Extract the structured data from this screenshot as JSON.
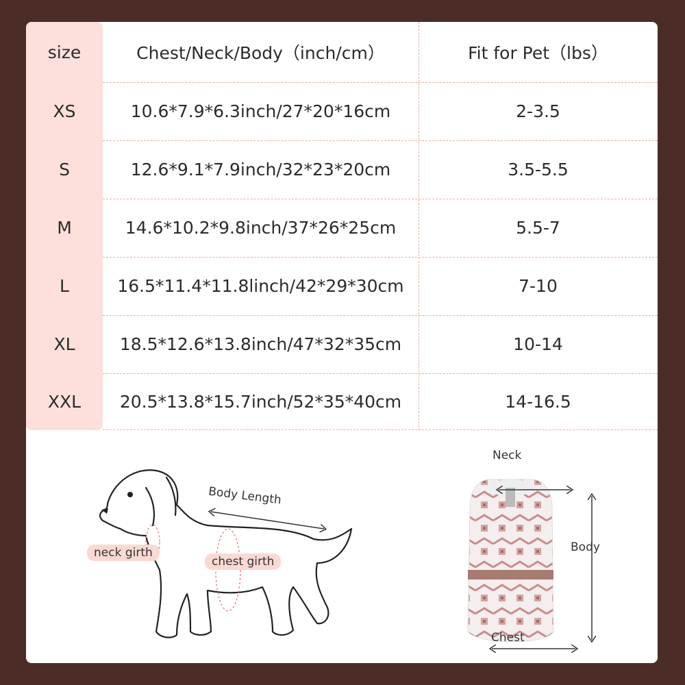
{
  "table": {
    "headers": [
      "size",
      "Chest/Neck/Body（inch/cm）",
      "Fit for Pet（lbs）"
    ],
    "rows": [
      [
        "XS",
        "10.6*7.9*6.3inch/27*20*16cm",
        "2-3.5"
      ],
      [
        "S",
        "12.6*9.1*7.9inch/32*23*20cm",
        "3.5-5.5"
      ],
      [
        "M",
        "14.6*10.2*9.8inch/37*26*25cm",
        "5.5-7"
      ],
      [
        "L",
        "16.5*11.4*11.8linch/42*29*30cm",
        "7-10"
      ],
      [
        "XL",
        "18.5*12.6*13.8inch/47*32*35cm",
        "10-14"
      ],
      [
        "XXL",
        "20.5*13.8*15.7inch/52*35*40cm",
        "14-16.5"
      ]
    ]
  },
  "dog_diagram": {
    "body_length": "Body Length",
    "neck_girth": "neck girth",
    "chest_girth": "chest girth"
  },
  "sweater_diagram": {
    "neck": "Neck",
    "body": "Body",
    "chest": "Chest"
  },
  "colors": {
    "background": "#4b2c26",
    "accent_pink": "#fde0db",
    "dash": "#eea89f"
  }
}
